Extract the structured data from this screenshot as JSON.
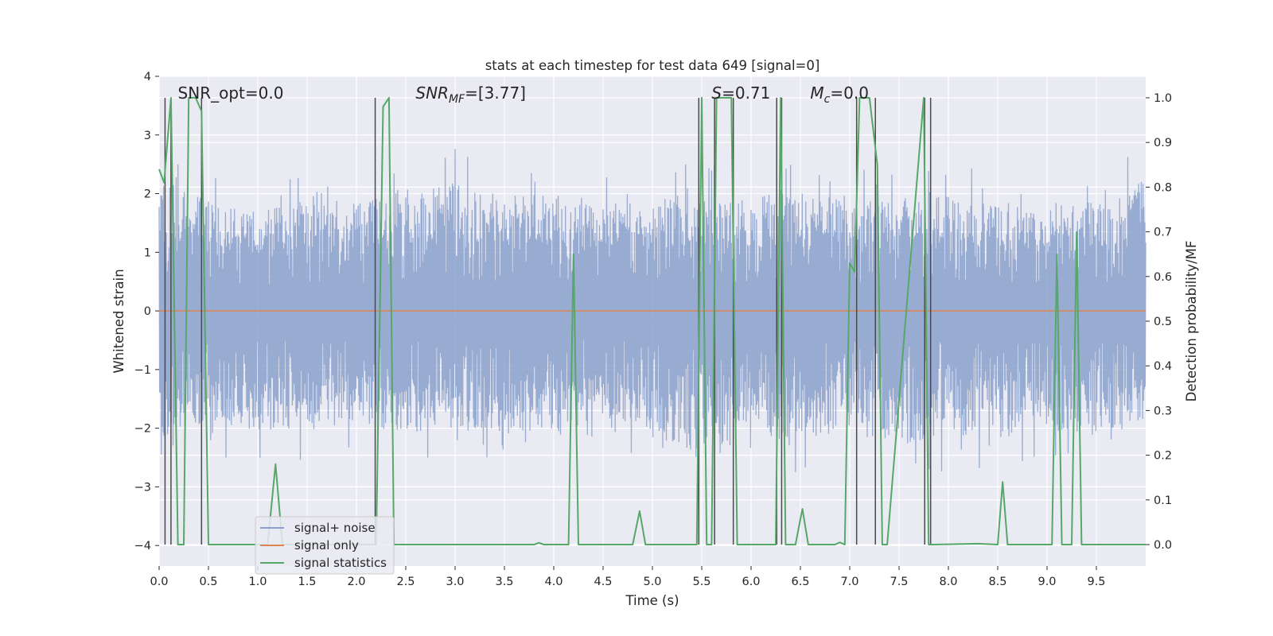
{
  "chart_data": {
    "type": "line",
    "title": "stats at each timestep for test data 649 [signal=0]",
    "xlabel": "Time (s)",
    "ylabel_left": "Whitened strain",
    "ylabel_right": "Detection probability/MF",
    "xlim": [
      0,
      10
    ],
    "ylim_left": [
      -4.35,
      4.0
    ],
    "ylim_right": [
      -0.048,
      1.048
    ],
    "x_ticks": [
      "0.0",
      "0.5",
      "1.0",
      "1.5",
      "2.0",
      "2.5",
      "3.0",
      "3.5",
      "4.0",
      "4.5",
      "5.0",
      "5.5",
      "6.0",
      "6.5",
      "7.0",
      "7.5",
      "8.0",
      "8.5",
      "9.0",
      "9.5"
    ],
    "y_left_ticks": [
      "4",
      "3",
      "2",
      "1",
      "0",
      "−1",
      "−2",
      "−3",
      "−4"
    ],
    "y_right_ticks": [
      "0.0",
      "0.1",
      "0.2",
      "0.3",
      "0.4",
      "0.5",
      "0.6",
      "0.7",
      "0.8",
      "0.9",
      "1.0"
    ],
    "grid": true,
    "legend_position": "lower-left",
    "annotations": [
      {
        "prefix": "SNR_opt=0.0",
        "sub": "",
        "suffix": "",
        "italic": false,
        "x": 0.19
      },
      {
        "prefix": "SNR",
        "sub": "MF",
        "suffix": "=[3.77]",
        "italic": true,
        "x": 2.6
      },
      {
        "prefix": "S",
        "sub": "",
        "suffix": "=0.71",
        "italic": true,
        "x": 5.6
      },
      {
        "prefix": "M",
        "sub": "c",
        "suffix": "=0.0",
        "italic": true,
        "x": 6.6
      }
    ],
    "series": [
      {
        "name": "signal+ noise",
        "color": "#8aa0cb",
        "axis": "left",
        "envelope": {
          "x": [
            0.0,
            0.5,
            1.0,
            1.5,
            2.0,
            2.5,
            3.0,
            3.5,
            4.0,
            4.5,
            5.0,
            5.5,
            6.0,
            6.5,
            7.0,
            7.5,
            8.0,
            8.5,
            9.0,
            9.5,
            10.0
          ],
          "upper": [
            2.9,
            2.4,
            2.2,
            2.5,
            2.4,
            2.7,
            2.8,
            2.5,
            2.6,
            2.3,
            2.4,
            2.6,
            2.5,
            2.6,
            2.4,
            2.5,
            2.5,
            2.4,
            2.3,
            2.4,
            2.9
          ],
          "lower": [
            -2.8,
            -2.5,
            -2.6,
            -2.6,
            -2.5,
            -2.7,
            -2.6,
            -2.7,
            -2.6,
            -2.4,
            -2.6,
            -3.4,
            -2.6,
            -3.0,
            -2.5,
            -3.0,
            -2.7,
            -2.8,
            -2.6,
            -2.8,
            -2.5
          ]
        }
      },
      {
        "name": "signal only",
        "color": "#dd8452",
        "axis": "left",
        "x": [
          0,
          10
        ],
        "y": [
          0,
          0
        ]
      },
      {
        "name": "signal statistics",
        "color": "#55a868",
        "axis": "right",
        "x": [
          0.0,
          0.05,
          0.12,
          0.19,
          0.25,
          0.3,
          0.37,
          0.43,
          0.5,
          1.1,
          1.18,
          1.25,
          1.5,
          2.15,
          2.2,
          2.27,
          2.33,
          2.38,
          3.8,
          3.85,
          3.9,
          4.15,
          4.2,
          4.25,
          4.8,
          4.87,
          4.93,
          5.45,
          5.5,
          5.55,
          5.6,
          5.65,
          5.7,
          5.8,
          5.86,
          6.25,
          6.3,
          6.35,
          6.4,
          6.45,
          6.52,
          6.58,
          6.85,
          6.9,
          6.95,
          7.0,
          7.05,
          7.1,
          7.2,
          7.28,
          7.33,
          7.38,
          7.75,
          7.8,
          7.85,
          8.3,
          8.5,
          8.55,
          8.6,
          9.05,
          9.1,
          9.15,
          9.2,
          9.25,
          9.3,
          9.35,
          9.4,
          10.0
        ],
        "y": [
          0.84,
          0.81,
          1.0,
          0.0,
          0.0,
          1.0,
          1.0,
          0.97,
          0.0,
          0.0,
          0.18,
          0.0,
          0.0,
          0.0,
          0.0,
          0.98,
          1.0,
          0.0,
          0.0,
          0.004,
          0.0,
          0.0,
          0.65,
          0.0,
          0.0,
          0.075,
          0.0,
          0.0,
          1.0,
          0.0,
          0.0,
          1.0,
          1.0,
          1.0,
          0.0,
          0.0,
          1.0,
          0.0,
          0.0,
          0.0,
          0.08,
          0.0,
          0.0,
          0.005,
          0.0,
          0.63,
          0.61,
          1.0,
          1.0,
          0.85,
          0.0,
          0.0,
          1.0,
          0.0,
          0.0,
          0.002,
          0.0,
          0.14,
          0.0,
          0.0,
          0.65,
          0.0,
          0.0,
          0.0,
          0.7,
          0.0,
          0.0,
          0.0
        ]
      }
    ],
    "marker_lines": {
      "color": "#4a4a4a",
      "x": [
        0.06,
        0.12,
        0.43,
        2.19,
        5.47,
        5.63,
        5.82,
        6.26,
        6.31,
        7.07,
        7.26,
        7.76,
        7.82
      ]
    }
  }
}
